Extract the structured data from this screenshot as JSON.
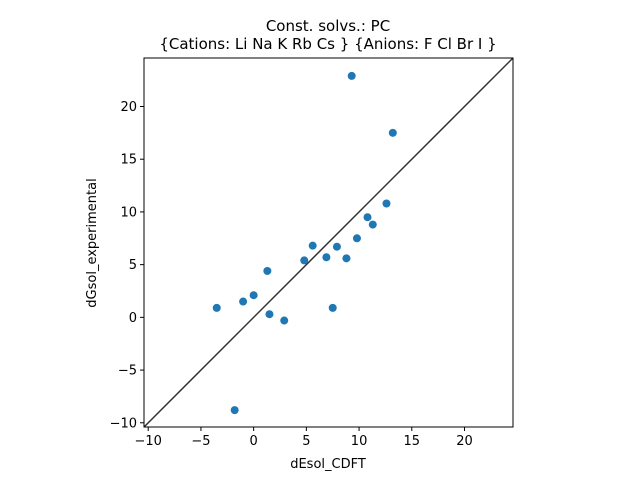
{
  "colors": {
    "point": "#1f77b4",
    "diagonal": "#333333",
    "axis": "#000000"
  },
  "chart_data": {
    "type": "scatter",
    "title_line1": "Const. solvs.: PC",
    "title_line2": "{Cations: Li Na K Rb Cs } {Anions: F Cl Br I }",
    "xlabel": "dEsol_CDFT",
    "ylabel": "dGsol_experimental",
    "xlim": [
      -10.4,
      24.6
    ],
    "ylim": [
      -10.4,
      24.6
    ],
    "xticks": [
      -10,
      -5,
      0,
      5,
      10,
      15,
      20
    ],
    "yticks": [
      -10,
      -5,
      0,
      5,
      10,
      15,
      20
    ],
    "xtick_labels": [
      "−10",
      "−5",
      "0",
      "5",
      "10",
      "15",
      "20"
    ],
    "ytick_labels": [
      "−10",
      "−5",
      "0",
      "5",
      "10",
      "15",
      "20"
    ],
    "reference_line": "y = x",
    "grid": false,
    "points": [
      {
        "x": -3.5,
        "y": 0.9
      },
      {
        "x": -1.0,
        "y": 1.5
      },
      {
        "x": 0.0,
        "y": 2.1
      },
      {
        "x": -1.8,
        "y": -8.8
      },
      {
        "x": 1.3,
        "y": 4.4
      },
      {
        "x": 1.5,
        "y": 0.3
      },
      {
        "x": 2.9,
        "y": -0.3
      },
      {
        "x": 4.8,
        "y": 5.4
      },
      {
        "x": 5.6,
        "y": 6.8
      },
      {
        "x": 6.9,
        "y": 5.7
      },
      {
        "x": 7.5,
        "y": 0.9
      },
      {
        "x": 7.9,
        "y": 6.7
      },
      {
        "x": 8.8,
        "y": 5.6
      },
      {
        "x": 9.3,
        "y": 22.9
      },
      {
        "x": 9.8,
        "y": 7.5
      },
      {
        "x": 10.8,
        "y": 9.5
      },
      {
        "x": 11.3,
        "y": 8.8
      },
      {
        "x": 12.6,
        "y": 10.8
      },
      {
        "x": 13.2,
        "y": 17.5
      }
    ]
  }
}
